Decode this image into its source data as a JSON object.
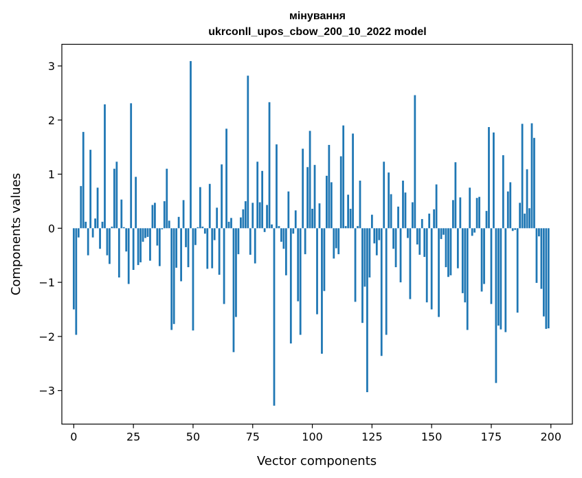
{
  "chart_data": {
    "type": "bar",
    "title": "мінування",
    "subtitle": "ukrconll_upos_cbow_200_10_2022 model",
    "xlabel": "Vector components",
    "ylabel": "Components values",
    "xlim": [
      -5,
      209
    ],
    "ylim": [
      -3.62,
      3.4
    ],
    "xticks": [
      0,
      25,
      50,
      75,
      100,
      125,
      150,
      175,
      200
    ],
    "yticks": [
      -3,
      -2,
      -1,
      0,
      1,
      2,
      3
    ],
    "ytick_labels": [
      "−3",
      "−2",
      "−1",
      "0",
      "1",
      "2",
      "3"
    ],
    "bar_color": "#1f77b4",
    "grid": false,
    "x": [
      0,
      1,
      2,
      3,
      4,
      5,
      6,
      7,
      8,
      9,
      10,
      11,
      12,
      13,
      14,
      15,
      16,
      17,
      18,
      19,
      20,
      21,
      22,
      23,
      24,
      25,
      26,
      27,
      28,
      29,
      30,
      31,
      32,
      33,
      34,
      35,
      36,
      37,
      38,
      39,
      40,
      41,
      42,
      43,
      44,
      45,
      46,
      47,
      48,
      49,
      50,
      51,
      52,
      53,
      54,
      55,
      56,
      57,
      58,
      59,
      60,
      61,
      62,
      63,
      64,
      65,
      66,
      67,
      68,
      69,
      70,
      71,
      72,
      73,
      74,
      75,
      76,
      77,
      78,
      79,
      80,
      81,
      82,
      83,
      84,
      85,
      86,
      87,
      88,
      89,
      90,
      91,
      92,
      93,
      94,
      95,
      96,
      97,
      98,
      99,
      100,
      101,
      102,
      103,
      104,
      105,
      106,
      107,
      108,
      109,
      110,
      111,
      112,
      113,
      114,
      115,
      116,
      117,
      118,
      119,
      120,
      121,
      122,
      123,
      124,
      125,
      126,
      127,
      128,
      129,
      130,
      131,
      132,
      133,
      134,
      135,
      136,
      137,
      138,
      139,
      140,
      141,
      142,
      143,
      144,
      145,
      146,
      147,
      148,
      149,
      150,
      151,
      152,
      153,
      154,
      155,
      156,
      157,
      158,
      159,
      160,
      161,
      162,
      163,
      164,
      165,
      166,
      167,
      168,
      169,
      170,
      171,
      172,
      173,
      174,
      175,
      176,
      177,
      178,
      179,
      180,
      181,
      182,
      183,
      184,
      185,
      186,
      187,
      188,
      189,
      190,
      191,
      192,
      193,
      194,
      195,
      196,
      197,
      198,
      199
    ],
    "values": [
      -1.5,
      -1.97,
      -0.17,
      0.78,
      1.78,
      0.12,
      -0.5,
      1.45,
      -0.17,
      0.18,
      0.75,
      -0.38,
      0.12,
      2.29,
      -0.5,
      -0.66,
      0.03,
      1.1,
      1.23,
      -0.91,
      0.53,
      0.02,
      -0.43,
      -1.03,
      2.31,
      -0.77,
      0.95,
      -0.68,
      -0.63,
      -0.25,
      -0.18,
      -0.16,
      -0.6,
      0.43,
      0.47,
      -0.32,
      -0.7,
      -0.02,
      0.5,
      1.1,
      0.14,
      -1.88,
      -1.77,
      -0.73,
      0.21,
      -0.98,
      0.52,
      -0.35,
      -0.72,
      3.09,
      -1.89,
      -0.31,
      0.02,
      0.76,
      0.03,
      -0.1,
      -0.75,
      0.82,
      -0.74,
      -0.22,
      0.38,
      -0.86,
      1.18,
      -1.4,
      1.84,
      0.12,
      0.19,
      -2.29,
      -1.64,
      -0.48,
      0.2,
      0.35,
      0.5,
      2.82,
      -0.49,
      0.47,
      -0.65,
      1.23,
      0.48,
      1.06,
      -0.07,
      0.43,
      2.33,
      0.07,
      -3.28,
      1.55,
      0.04,
      -0.25,
      -0.38,
      -0.87,
      0.68,
      -2.13,
      -0.1,
      0.33,
      -1.35,
      -1.97,
      1.47,
      -0.48,
      1.13,
      1.8,
      0.36,
      1.17,
      -1.59,
      0.46,
      -2.32,
      -1.16,
      0.97,
      1.54,
      0.85,
      -0.56,
      -0.37,
      -0.48,
      1.33,
      1.9,
      0.04,
      0.62,
      0.36,
      1.75,
      -1.36,
      0.04,
      0.88,
      -1.75,
      -1.08,
      -3.03,
      -0.91,
      0.25,
      -0.28,
      -0.5,
      -0.22,
      -2.36,
      1.23,
      -1.97,
      1.03,
      0.63,
      -0.38,
      -0.72,
      0.4,
      -1.0,
      0.88,
      0.66,
      -0.18,
      -1.31,
      0.48,
      2.46,
      -0.3,
      -0.49,
      0.17,
      -0.53,
      -1.37,
      0.27,
      -1.5,
      0.35,
      0.81,
      -1.64,
      -0.2,
      -0.12,
      -0.72,
      -0.9,
      -0.87,
      0.52,
      1.22,
      -0.74,
      0.57,
      -1.2,
      -1.37,
      -1.88,
      0.75,
      -0.14,
      -0.08,
      0.56,
      0.58,
      -1.17,
      -1.03,
      0.32,
      1.87,
      -1.4,
      1.77,
      -2.86,
      -1.8,
      -1.87,
      1.35,
      -1.92,
      0.68,
      0.85,
      -0.05,
      -0.03,
      -1.56,
      0.47,
      1.93,
      0.27,
      1.09,
      0.37,
      1.94,
      1.67,
      -1.01,
      -0.15,
      -1.12,
      -1.63,
      -1.86,
      -1.85
    ]
  }
}
